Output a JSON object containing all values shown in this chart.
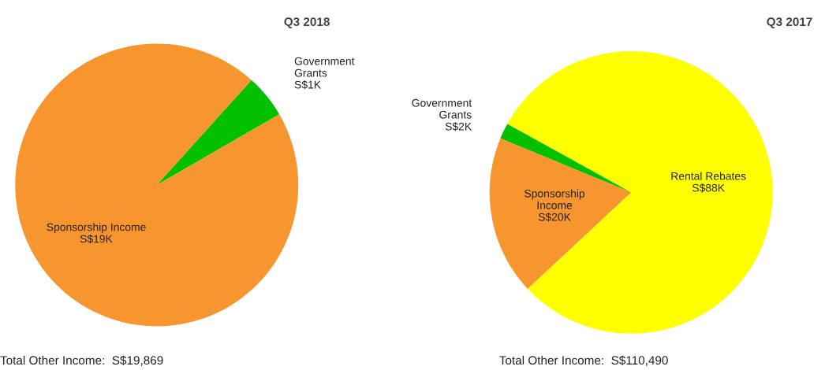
{
  "chart_data": [
    {
      "type": "pie",
      "title": "Q3 2018",
      "categories": [
        "Government Grants",
        "Sponsorship Income"
      ],
      "values": [
        5,
        95
      ],
      "value_labels": [
        "S$1K",
        "S$19K"
      ],
      "colors": [
        "#00c000",
        "#f7952f"
      ],
      "annotations": [
        "Total Other Income:  S$19,869"
      ]
    },
    {
      "type": "pie",
      "title": "Q3 2017",
      "categories": [
        "Rental Rebates",
        "Government Grants",
        "Sponsorship Income"
      ],
      "values": [
        80,
        1.8,
        18.2
      ],
      "value_labels": [
        "S$88K",
        "S$2K",
        "S$20K"
      ],
      "colors": [
        "#ffff00",
        "#00c000",
        "#f7952f"
      ],
      "annotations": [
        "Total Other Income:  S$110,490"
      ]
    }
  ]
}
